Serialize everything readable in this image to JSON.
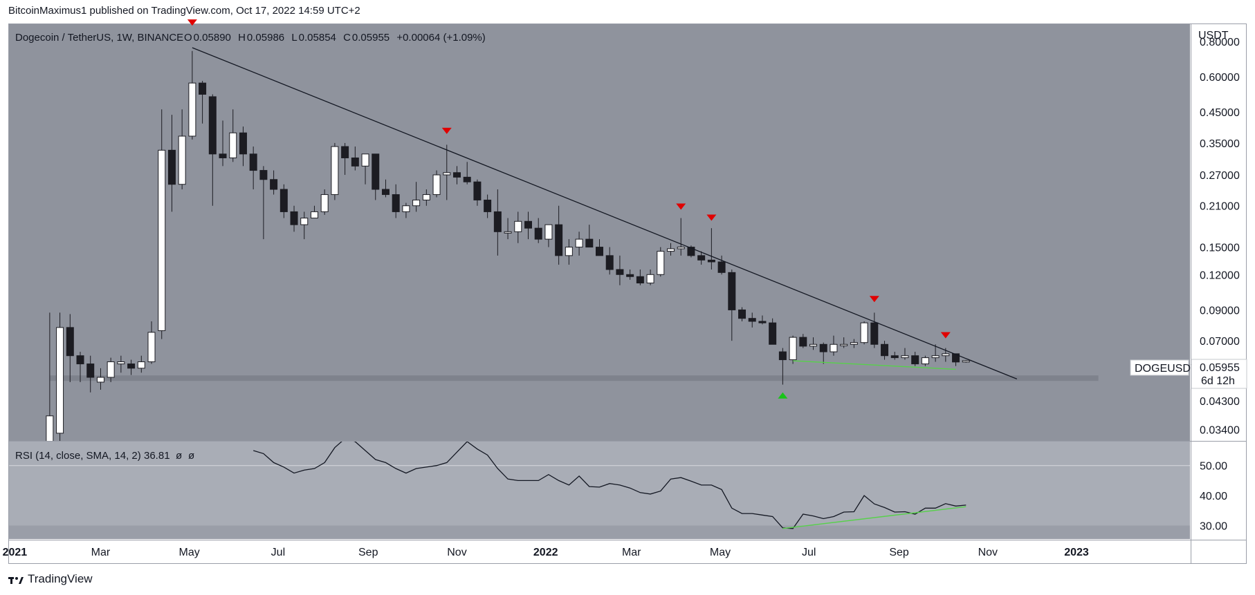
{
  "header": {
    "text": "BitcoinMaximus1 published on TradingView.com, Oct 17, 2022 14:59 UTC+2"
  },
  "footer": {
    "brand": "TradingView"
  },
  "legend": {
    "symbol": "Dogecoin / TetherUS, 1W, BINANCE",
    "open_label": "O",
    "open": "0.05890",
    "high_label": "H",
    "high": "0.05986",
    "low_label": "L",
    "low": "0.05854",
    "close_label": "C",
    "close": "0.05955",
    "change": "+0.00064 (+1.09%)"
  },
  "price_axis": {
    "currency": "USDT",
    "last_price_label": "0.05955",
    "countdown": "6d 12h",
    "symbol_tag": "DOGEUSDT"
  },
  "rsi_legend": {
    "label": "RSI (14, close, SMA, 14, 2)",
    "value": "36.81",
    "extra1": "ø",
    "extra2": "ø"
  },
  "colors": {
    "pane_bg": "#8f939d",
    "rsi_bg": "#9a9ea8",
    "rsi_band": "#a9adb6",
    "grid": "#c5c8ce",
    "bull": "#ffffff",
    "bear": "#1c1c22",
    "wick": "#1c1c22",
    "support_zone": "#7b7f89",
    "green_line": "#57d14a",
    "red_marker": "#e00000",
    "green_marker": "#19c419"
  },
  "chart_data": [
    {
      "type": "candlestick",
      "title": "Dogecoin / TetherUS, 1W, BINANCE",
      "y_scale": "log",
      "ylim": [
        0.031,
        0.92
      ],
      "y_ticks": [
        "0.80000",
        "0.60000",
        "0.45000",
        "0.35000",
        "0.27000",
        "0.21000",
        "0.15000",
        "0.12000",
        "0.09000",
        "0.07000",
        "0.05955",
        "0.04300",
        "0.03400"
      ],
      "x_ticks": [
        "2021",
        "Mar",
        "May",
        "Jul",
        "Sep",
        "Nov",
        "2022",
        "Mar",
        "May",
        "Jul",
        "Sep",
        "Nov",
        "2023"
      ],
      "xlim": [
        "2020-12-28",
        "2023-03-20"
      ],
      "candles": [
        {
          "t": "2021-01-25",
          "o": 0.009,
          "h": 0.088,
          "l": 0.009,
          "c": 0.038
        },
        {
          "t": "2021-02-01",
          "o": 0.033,
          "h": 0.088,
          "l": 0.03,
          "c": 0.078
        },
        {
          "t": "2021-02-08",
          "o": 0.078,
          "h": 0.087,
          "l": 0.05,
          "c": 0.062
        },
        {
          "t": "2021-02-15",
          "o": 0.062,
          "h": 0.064,
          "l": 0.05,
          "c": 0.058
        },
        {
          "t": "2021-02-22",
          "o": 0.058,
          "h": 0.062,
          "l": 0.046,
          "c": 0.052
        },
        {
          "t": "2021-03-01",
          "o": 0.05,
          "h": 0.056,
          "l": 0.047,
          "c": 0.052
        },
        {
          "t": "2021-03-08",
          "o": 0.052,
          "h": 0.061,
          "l": 0.05,
          "c": 0.059
        },
        {
          "t": "2021-03-15",
          "o": 0.058,
          "h": 0.062,
          "l": 0.054,
          "c": 0.059
        },
        {
          "t": "2021-03-22",
          "o": 0.058,
          "h": 0.06,
          "l": 0.053,
          "c": 0.056
        },
        {
          "t": "2021-03-29",
          "o": 0.056,
          "h": 0.062,
          "l": 0.054,
          "c": 0.059
        },
        {
          "t": "2021-04-05",
          "o": 0.059,
          "h": 0.082,
          "l": 0.058,
          "c": 0.075
        },
        {
          "t": "2021-04-12",
          "o": 0.076,
          "h": 0.46,
          "l": 0.071,
          "c": 0.33
        },
        {
          "t": "2021-04-19",
          "o": 0.33,
          "h": 0.44,
          "l": 0.2,
          "c": 0.25
        },
        {
          "t": "2021-04-26",
          "o": 0.25,
          "h": 0.46,
          "l": 0.24,
          "c": 0.37
        },
        {
          "t": "2021-05-03",
          "o": 0.37,
          "h": 0.74,
          "l": 0.36,
          "c": 0.57
        },
        {
          "t": "2021-05-10",
          "o": 0.57,
          "h": 0.58,
          "l": 0.41,
          "c": 0.52
        },
        {
          "t": "2021-05-17",
          "o": 0.51,
          "h": 0.52,
          "l": 0.21,
          "c": 0.32
        },
        {
          "t": "2021-05-24",
          "o": 0.32,
          "h": 0.42,
          "l": 0.29,
          "c": 0.31
        },
        {
          "t": "2021-05-31",
          "o": 0.31,
          "h": 0.46,
          "l": 0.3,
          "c": 0.38
        },
        {
          "t": "2021-06-07",
          "o": 0.38,
          "h": 0.4,
          "l": 0.29,
          "c": 0.32
        },
        {
          "t": "2021-06-14",
          "o": 0.32,
          "h": 0.34,
          "l": 0.24,
          "c": 0.28
        },
        {
          "t": "2021-06-21",
          "o": 0.28,
          "h": 0.29,
          "l": 0.16,
          "c": 0.26
        },
        {
          "t": "2021-06-28",
          "o": 0.26,
          "h": 0.28,
          "l": 0.23,
          "c": 0.24
        },
        {
          "t": "2021-07-05",
          "o": 0.24,
          "h": 0.25,
          "l": 0.19,
          "c": 0.2
        },
        {
          "t": "2021-07-12",
          "o": 0.2,
          "h": 0.21,
          "l": 0.17,
          "c": 0.18
        },
        {
          "t": "2021-07-19",
          "o": 0.18,
          "h": 0.2,
          "l": 0.16,
          "c": 0.19
        },
        {
          "t": "2021-07-26",
          "o": 0.19,
          "h": 0.21,
          "l": 0.19,
          "c": 0.2
        },
        {
          "t": "2021-08-02",
          "o": 0.2,
          "h": 0.24,
          "l": 0.195,
          "c": 0.23
        },
        {
          "t": "2021-08-09",
          "o": 0.23,
          "h": 0.35,
          "l": 0.22,
          "c": 0.34
        },
        {
          "t": "2021-08-16",
          "o": 0.34,
          "h": 0.35,
          "l": 0.27,
          "c": 0.31
        },
        {
          "t": "2021-08-23",
          "o": 0.31,
          "h": 0.34,
          "l": 0.28,
          "c": 0.29
        },
        {
          "t": "2021-08-30",
          "o": 0.29,
          "h": 0.32,
          "l": 0.25,
          "c": 0.32
        },
        {
          "t": "2021-09-06",
          "o": 0.32,
          "h": 0.32,
          "l": 0.22,
          "c": 0.24
        },
        {
          "t": "2021-09-13",
          "o": 0.24,
          "h": 0.26,
          "l": 0.225,
          "c": 0.23
        },
        {
          "t": "2021-09-20",
          "o": 0.23,
          "h": 0.25,
          "l": 0.19,
          "c": 0.2
        },
        {
          "t": "2021-09-27",
          "o": 0.2,
          "h": 0.215,
          "l": 0.19,
          "c": 0.21
        },
        {
          "t": "2021-10-04",
          "o": 0.21,
          "h": 0.255,
          "l": 0.2,
          "c": 0.22
        },
        {
          "t": "2021-10-11",
          "o": 0.22,
          "h": 0.24,
          "l": 0.21,
          "c": 0.23
        },
        {
          "t": "2021-10-18",
          "o": 0.23,
          "h": 0.28,
          "l": 0.225,
          "c": 0.27
        },
        {
          "t": "2021-10-25",
          "o": 0.27,
          "h": 0.345,
          "l": 0.22,
          "c": 0.275
        },
        {
          "t": "2021-11-01",
          "o": 0.275,
          "h": 0.29,
          "l": 0.25,
          "c": 0.265
        },
        {
          "t": "2021-11-08",
          "o": 0.265,
          "h": 0.3,
          "l": 0.25,
          "c": 0.255
        },
        {
          "t": "2021-11-15",
          "o": 0.255,
          "h": 0.26,
          "l": 0.21,
          "c": 0.22
        },
        {
          "t": "2021-11-22",
          "o": 0.22,
          "h": 0.23,
          "l": 0.19,
          "c": 0.2
        },
        {
          "t": "2021-11-29",
          "o": 0.2,
          "h": 0.24,
          "l": 0.14,
          "c": 0.17
        },
        {
          "t": "2021-12-06",
          "o": 0.17,
          "h": 0.19,
          "l": 0.16,
          "c": 0.17
        },
        {
          "t": "2021-12-13",
          "o": 0.17,
          "h": 0.2,
          "l": 0.155,
          "c": 0.185
        },
        {
          "t": "2021-12-20",
          "o": 0.185,
          "h": 0.2,
          "l": 0.16,
          "c": 0.175
        },
        {
          "t": "2021-12-27",
          "o": 0.175,
          "h": 0.19,
          "l": 0.155,
          "c": 0.16
        },
        {
          "t": "2022-01-03",
          "o": 0.16,
          "h": 0.18,
          "l": 0.15,
          "c": 0.18
        },
        {
          "t": "2022-01-10",
          "o": 0.18,
          "h": 0.21,
          "l": 0.13,
          "c": 0.14
        },
        {
          "t": "2022-01-17",
          "o": 0.14,
          "h": 0.16,
          "l": 0.13,
          "c": 0.15
        },
        {
          "t": "2022-01-24",
          "o": 0.15,
          "h": 0.17,
          "l": 0.14,
          "c": 0.16
        },
        {
          "t": "2022-01-31",
          "o": 0.16,
          "h": 0.18,
          "l": 0.15,
          "c": 0.15
        },
        {
          "t": "2022-02-07",
          "o": 0.15,
          "h": 0.16,
          "l": 0.14,
          "c": 0.14
        },
        {
          "t": "2022-02-14",
          "o": 0.14,
          "h": 0.15,
          "l": 0.12,
          "c": 0.125
        },
        {
          "t": "2022-02-21",
          "o": 0.125,
          "h": 0.14,
          "l": 0.11,
          "c": 0.12
        },
        {
          "t": "2022-02-28",
          "o": 0.12,
          "h": 0.125,
          "l": 0.115,
          "c": 0.118
        },
        {
          "t": "2022-03-07",
          "o": 0.118,
          "h": 0.125,
          "l": 0.11,
          "c": 0.112
        },
        {
          "t": "2022-03-14",
          "o": 0.112,
          "h": 0.125,
          "l": 0.11,
          "c": 0.12
        },
        {
          "t": "2022-03-21",
          "o": 0.12,
          "h": 0.15,
          "l": 0.118,
          "c": 0.145
        },
        {
          "t": "2022-03-28",
          "o": 0.145,
          "h": 0.155,
          "l": 0.14,
          "c": 0.148
        },
        {
          "t": "2022-04-04",
          "o": 0.148,
          "h": 0.19,
          "l": 0.14,
          "c": 0.15
        },
        {
          "t": "2022-04-11",
          "o": 0.15,
          "h": 0.152,
          "l": 0.138,
          "c": 0.14
        },
        {
          "t": "2022-04-18",
          "o": 0.14,
          "h": 0.145,
          "l": 0.13,
          "c": 0.135
        },
        {
          "t": "2022-04-25",
          "o": 0.135,
          "h": 0.175,
          "l": 0.125,
          "c": 0.133
        },
        {
          "t": "2022-05-02",
          "o": 0.133,
          "h": 0.14,
          "l": 0.12,
          "c": 0.122
        },
        {
          "t": "2022-05-09",
          "o": 0.122,
          "h": 0.125,
          "l": 0.07,
          "c": 0.09
        },
        {
          "t": "2022-05-16",
          "o": 0.09,
          "h": 0.092,
          "l": 0.082,
          "c": 0.084
        },
        {
          "t": "2022-05-23",
          "o": 0.084,
          "h": 0.088,
          "l": 0.078,
          "c": 0.082
        },
        {
          "t": "2022-05-30",
          "o": 0.082,
          "h": 0.086,
          "l": 0.08,
          "c": 0.081
        },
        {
          "t": "2022-06-06",
          "o": 0.081,
          "h": 0.084,
          "l": 0.068,
          "c": 0.068
        },
        {
          "t": "2022-06-13",
          "o": 0.064,
          "h": 0.066,
          "l": 0.049,
          "c": 0.06
        },
        {
          "t": "2022-06-20",
          "o": 0.06,
          "h": 0.073,
          "l": 0.058,
          "c": 0.072
        },
        {
          "t": "2022-06-27",
          "o": 0.072,
          "h": 0.074,
          "l": 0.066,
          "c": 0.067
        },
        {
          "t": "2022-07-04",
          "o": 0.067,
          "h": 0.072,
          "l": 0.065,
          "c": 0.068
        },
        {
          "t": "2022-07-11",
          "o": 0.068,
          "h": 0.069,
          "l": 0.058,
          "c": 0.064
        },
        {
          "t": "2022-07-18",
          "o": 0.064,
          "h": 0.073,
          "l": 0.062,
          "c": 0.068
        },
        {
          "t": "2022-07-25",
          "o": 0.068,
          "h": 0.072,
          "l": 0.066,
          "c": 0.068
        },
        {
          "t": "2022-08-01",
          "o": 0.068,
          "h": 0.071,
          "l": 0.066,
          "c": 0.069
        },
        {
          "t": "2022-08-08",
          "o": 0.069,
          "h": 0.082,
          "l": 0.068,
          "c": 0.081
        },
        {
          "t": "2022-08-15",
          "o": 0.081,
          "h": 0.088,
          "l": 0.066,
          "c": 0.068
        },
        {
          "t": "2022-08-22",
          "o": 0.068,
          "h": 0.07,
          "l": 0.06,
          "c": 0.062
        },
        {
          "t": "2022-08-29",
          "o": 0.062,
          "h": 0.064,
          "l": 0.06,
          "c": 0.061
        },
        {
          "t": "2022-09-05",
          "o": 0.061,
          "h": 0.066,
          "l": 0.06,
          "c": 0.062
        },
        {
          "t": "2022-09-12",
          "o": 0.062,
          "h": 0.064,
          "l": 0.057,
          "c": 0.058
        },
        {
          "t": "2022-09-19",
          "o": 0.058,
          "h": 0.062,
          "l": 0.057,
          "c": 0.061
        },
        {
          "t": "2022-09-26",
          "o": 0.061,
          "h": 0.068,
          "l": 0.059,
          "c": 0.062
        },
        {
          "t": "2022-10-03",
          "o": 0.062,
          "h": 0.066,
          "l": 0.059,
          "c": 0.063
        },
        {
          "t": "2022-10-10",
          "o": 0.063,
          "h": 0.063,
          "l": 0.057,
          "c": 0.0589
        },
        {
          "t": "2022-10-17",
          "o": 0.0589,
          "h": 0.05986,
          "l": 0.05854,
          "c": 0.05955
        }
      ],
      "annotations": {
        "resistance_line": [
          {
            "t": "2021-05-03",
            "v": 0.76
          },
          {
            "t": "2022-11-21",
            "v": 0.0513
          }
        ],
        "support_zone": [
          0.0505,
          0.0528
        ],
        "support_zone_span": [
          "2021-01-25",
          "2023-01-16"
        ],
        "divergence_line": [
          {
            "t": "2022-06-20",
            "v": 0.0595
          },
          {
            "t": "2022-10-10",
            "v": 0.0555
          }
        ],
        "red_markers": [
          {
            "t": "2021-05-03",
            "v": 0.93
          },
          {
            "t": "2021-10-25",
            "v": 0.385
          },
          {
            "t": "2022-04-04",
            "v": 0.208
          },
          {
            "t": "2022-04-25",
            "v": 0.19
          },
          {
            "t": "2022-08-15",
            "v": 0.098
          },
          {
            "t": "2022-10-03",
            "v": 0.073
          }
        ],
        "green_markers": [
          {
            "t": "2022-06-13",
            "v": 0.045
          }
        ]
      }
    },
    {
      "type": "line",
      "title": "RSI (14, close, SMA, 14, 2)",
      "ylim": [
        25.5,
        58
      ],
      "y_ticks": [
        50,
        40,
        30
      ],
      "band": [
        30,
        70
      ],
      "series": [
        {
          "x": [
            "2021-06-14",
            "2021-06-21",
            "2021-06-28",
            "2021-07-05",
            "2021-07-12",
            "2021-07-19",
            "2021-07-26",
            "2021-08-02",
            "2021-08-09",
            "2021-08-16",
            "2021-08-23",
            "2021-08-30",
            "2021-09-06",
            "2021-09-13",
            "2021-09-20",
            "2021-09-27",
            "2021-10-04",
            "2021-10-11",
            "2021-10-18",
            "2021-10-25",
            "2021-11-01",
            "2021-11-08",
            "2021-11-15",
            "2021-11-22",
            "2021-11-29",
            "2021-12-06",
            "2021-12-13",
            "2021-12-20",
            "2021-12-27",
            "2022-01-03",
            "2022-01-10",
            "2022-01-17",
            "2022-01-24",
            "2022-01-31",
            "2022-02-07",
            "2022-02-14",
            "2022-02-21",
            "2022-02-28",
            "2022-03-07",
            "2022-03-14",
            "2022-03-21",
            "2022-03-28",
            "2022-04-04",
            "2022-04-11",
            "2022-04-18",
            "2022-04-25",
            "2022-05-02",
            "2022-05-09",
            "2022-05-16",
            "2022-05-23",
            "2022-05-30",
            "2022-06-06",
            "2022-06-13",
            "2022-06-20",
            "2022-06-27",
            "2022-07-04",
            "2022-07-11",
            "2022-07-18",
            "2022-07-25",
            "2022-08-01",
            "2022-08-08",
            "2022-08-15",
            "2022-08-22",
            "2022-08-29",
            "2022-09-05",
            "2022-09-12",
            "2022-09-19",
            "2022-09-26",
            "2022-10-03",
            "2022-10-10",
            "2022-10-17"
          ],
          "values": [
            55.0,
            54.0,
            51.0,
            49.5,
            47.5,
            48.5,
            49.0,
            51.0,
            56.0,
            59.0,
            58.0,
            55.0,
            52.0,
            51.0,
            49.0,
            47.5,
            49.0,
            49.5,
            50.0,
            51.0,
            54.5,
            58.0,
            55.5,
            53.5,
            49.0,
            45.5,
            45.0,
            45.0,
            45.0,
            47.0,
            45.0,
            43.5,
            46.5,
            43.0,
            42.8,
            44.0,
            43.5,
            42.5,
            41.0,
            40.5,
            41.5,
            45.5,
            46.0,
            44.8,
            43.5,
            43.5,
            42.0,
            35.8,
            34.0,
            34.0,
            33.5,
            33.0,
            29.2,
            29.0,
            33.8,
            33.2,
            32.3,
            33.0,
            34.5,
            34.6,
            40.0,
            37.2,
            36.0,
            34.5,
            34.6,
            33.8,
            35.8,
            35.8,
            37.3,
            36.5,
            36.81
          ]
        }
      ],
      "trend_line": [
        {
          "t": "2022-06-13",
          "v": 29.0
        },
        {
          "t": "2022-10-17",
          "v": 36.3
        }
      ]
    }
  ]
}
